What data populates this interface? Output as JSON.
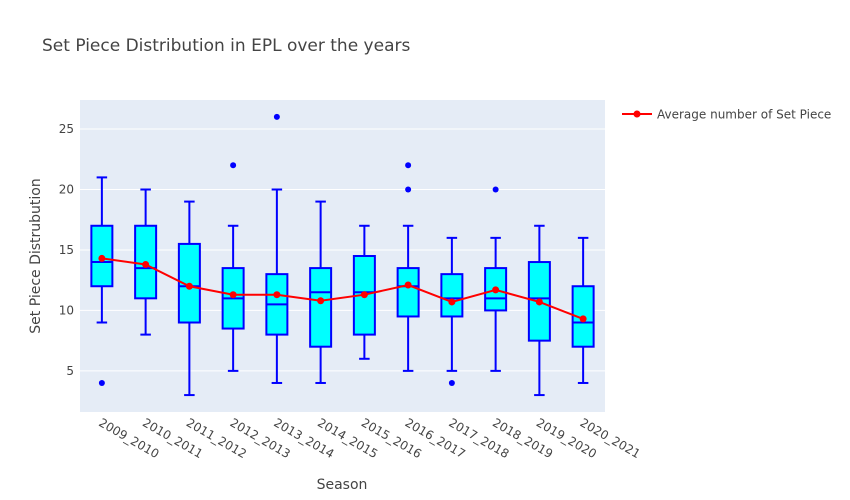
{
  "chart_data": {
    "type": "box",
    "title": "Set Piece Distribution in EPL over the years",
    "xlabel": "Season",
    "ylabel": "Set Piece Distrubution",
    "ylim": [
      1.6,
      27.4
    ],
    "yticks": [
      5,
      10,
      15,
      20,
      25
    ],
    "categories": [
      "2009_2010",
      "2010_2011",
      "2011_2012",
      "2012_2013",
      "2013_2014",
      "2014_2015",
      "2015_2016",
      "2016_2017",
      "2017_2018",
      "2018_2019",
      "2019_2020",
      "2020_2021"
    ],
    "boxes": [
      {
        "min": 9,
        "q1": 12,
        "median": 14,
        "q3": 17,
        "max": 21,
        "outliers": [
          4
        ]
      },
      {
        "min": 8,
        "q1": 11,
        "median": 13.5,
        "q3": 17,
        "max": 20,
        "outliers": []
      },
      {
        "min": 3,
        "q1": 9,
        "median": 12,
        "q3": 15.5,
        "max": 19,
        "outliers": []
      },
      {
        "min": 5,
        "q1": 8.5,
        "median": 11,
        "q3": 13.5,
        "max": 17,
        "outliers": [
          22
        ]
      },
      {
        "min": 4,
        "q1": 8,
        "median": 10.5,
        "q3": 13,
        "max": 20,
        "outliers": [
          26
        ]
      },
      {
        "min": 4,
        "q1": 7,
        "median": 11.5,
        "q3": 13.5,
        "max": 19,
        "outliers": []
      },
      {
        "min": 6,
        "q1": 8,
        "median": 11.5,
        "q3": 14.5,
        "max": 17,
        "outliers": []
      },
      {
        "min": 5,
        "q1": 9.5,
        "median": 12,
        "q3": 13.5,
        "max": 17,
        "outliers": [
          20,
          22
        ]
      },
      {
        "min": 5,
        "q1": 9.5,
        "median": 11,
        "q3": 13,
        "max": 16,
        "outliers": [
          4
        ]
      },
      {
        "min": 5,
        "q1": 10,
        "median": 11,
        "q3": 13.5,
        "max": 16,
        "outliers": [
          20
        ]
      },
      {
        "min": 3,
        "q1": 7.5,
        "median": 11,
        "q3": 14,
        "max": 17,
        "outliers": []
      },
      {
        "min": 4,
        "q1": 7,
        "median": 9,
        "q3": 12,
        "max": 16,
        "outliers": []
      }
    ],
    "series": [
      {
        "name": "Average number of Set Piece",
        "type": "line",
        "values": [
          14.3,
          13.8,
          12.0,
          11.3,
          11.3,
          10.8,
          11.3,
          12.1,
          10.7,
          11.7,
          10.7,
          9.3
        ]
      }
    ],
    "legend_position": "top-right",
    "grid": true,
    "colors": {
      "box_fill": "#00ffff",
      "box_line": "#0000ff",
      "average_line": "#ff0000",
      "plot_bg": "#e5ecf6",
      "grid": "#ffffff"
    }
  }
}
